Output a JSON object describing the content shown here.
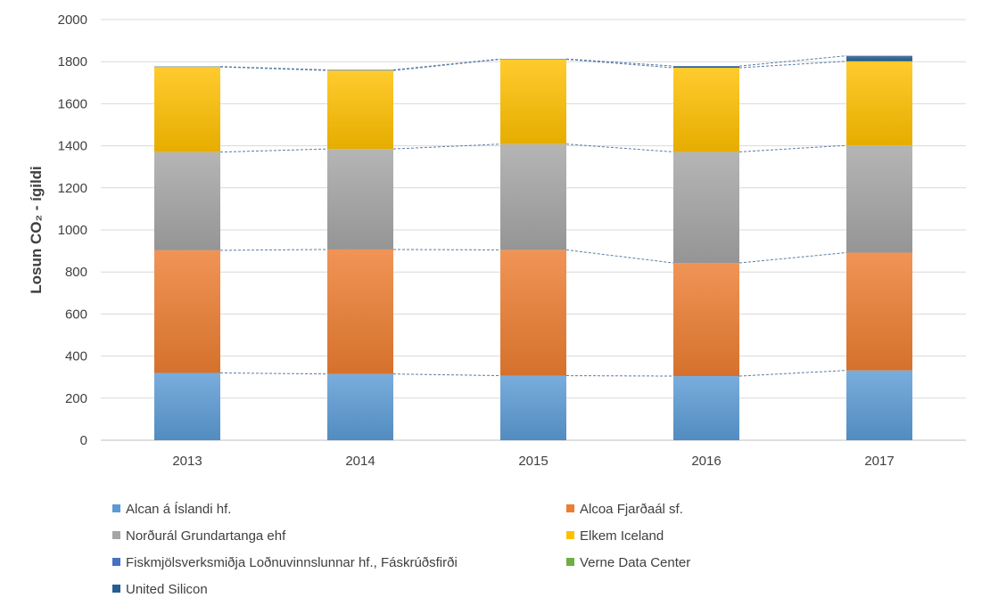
{
  "chart_data": {
    "type": "bar",
    "stacked": true,
    "title": "",
    "xlabel": "",
    "ylabel": "Losun CO₂ - ígildi",
    "ylim": [
      0,
      2000
    ],
    "yticks": [
      0,
      200,
      400,
      600,
      800,
      1000,
      1200,
      1400,
      1600,
      1800,
      2000
    ],
    "grid": true,
    "legend_position": "bottom",
    "series_connector_lines": true,
    "categories": [
      "2013",
      "2014",
      "2015",
      "2016",
      "2017"
    ],
    "series": [
      {
        "name": "Alcan á Íslandi hf.",
        "color": "#5b9bd5",
        "values": [
          320,
          315,
          307,
          305,
          332
        ]
      },
      {
        "name": "Alcoa Fjarðaál sf.",
        "color": "#ed7d31",
        "values": [
          583,
          592,
          598,
          538,
          560
        ]
      },
      {
        "name": "Norðurál Grundartanga ehf",
        "color": "#a5a5a5",
        "values": [
          467,
          478,
          503,
          528,
          510
        ]
      },
      {
        "name": "Elkem Iceland",
        "color": "#ffc000",
        "values": [
          405,
          373,
          403,
          400,
          400
        ]
      },
      {
        "name": "Fiskmjölsverksmiðja Loðnuvinnslunnar hf., Fáskrúðsfirði",
        "color": "#4472c4",
        "values": [
          0,
          0,
          0,
          0,
          0
        ]
      },
      {
        "name": "Verne Data Center",
        "color": "#70ad47",
        "values": [
          0,
          0,
          0,
          0,
          0
        ]
      },
      {
        "name": "United Silicon",
        "color": "#255e91",
        "values": [
          2,
          3,
          2,
          8,
          26
        ]
      }
    ]
  }
}
